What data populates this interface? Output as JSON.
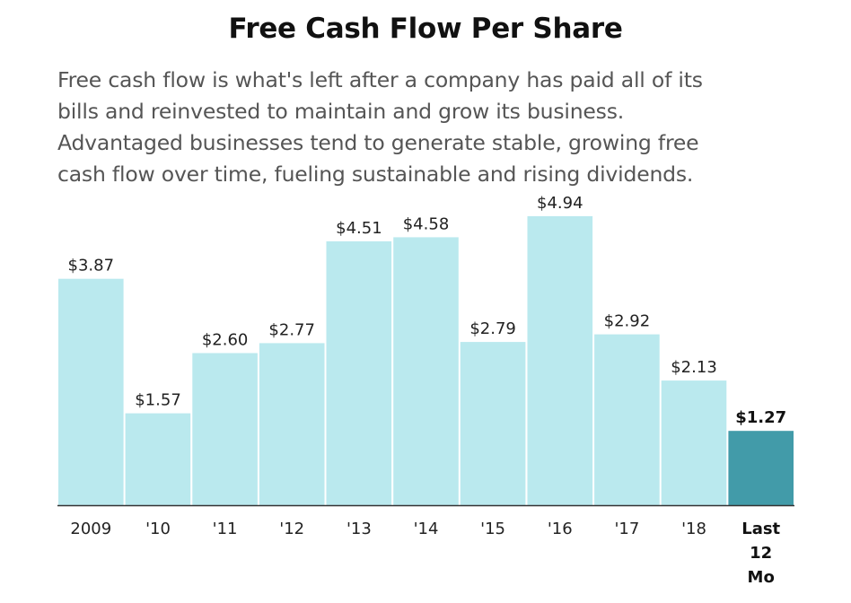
{
  "chart_data": {
    "type": "bar",
    "title": "Free Cash Flow Per Share",
    "subtitle": "Free cash flow is what's left after a company has paid all of its\nbills and reinvested to maintain and grow its business.\nAdvantaged businesses tend to generate stable, growing free\ncash flow over time, fueling sustainable and rising dividends.",
    "categories": [
      "2009",
      "'10",
      "'11",
      "'12",
      "'13",
      "'14",
      "'15",
      "'16",
      "'17",
      "'18",
      "Last\n12\nMo"
    ],
    "values": [
      3.87,
      1.57,
      2.6,
      2.77,
      4.51,
      4.58,
      2.79,
      4.94,
      2.92,
      2.13,
      1.27
    ],
    "value_labels": [
      "$3.87",
      "$1.57",
      "$2.60",
      "$2.77",
      "$4.51",
      "$4.58",
      "$2.79",
      "$4.94",
      "$2.92",
      "$2.13",
      "$1.27"
    ],
    "highlight_index": 10,
    "colors": {
      "bar": "#bae9ee",
      "highlight": "#429ba9",
      "axis": "#333333",
      "text": "#222222"
    },
    "ylim": [
      0,
      5.0
    ],
    "grid": false,
    "legend": "none",
    "xlabel": "",
    "ylabel": ""
  }
}
